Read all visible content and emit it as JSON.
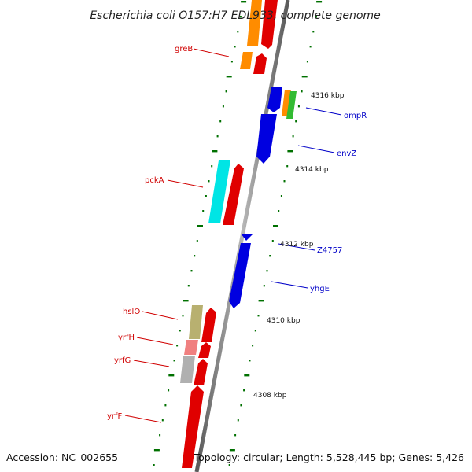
{
  "title": "Escherichia coli O157:H7 EDL933, complete genome",
  "footer": {
    "accession": "Accession: NC_002655",
    "topology": "Topology: circular; Length: 5,528,445 bp; Genes: 5,426"
  },
  "kbp_labels": [
    "4316 kbp",
    "4314 kbp",
    "4312 kbp",
    "4310 kbp",
    "4308 kbp"
  ],
  "colors": {
    "red": "#e00000",
    "blue": "#0000e0",
    "orange": "#ff8c00",
    "green": "#33bb33",
    "cyan": "#00e5e5",
    "olive": "#b8b070",
    "pink": "#f08080",
    "gray": "#b0b0b0",
    "backbone": "#8a8a8a",
    "ticks": "#007000",
    "label_red": "#d00000",
    "label_blue": "#0000c8"
  },
  "gene_labels_left": [
    "greB",
    "pckA",
    "hslO",
    "yrfH",
    "yrfG",
    "yrfF"
  ],
  "gene_labels_right": [
    "ompR",
    "envZ",
    "Z4757",
    "yhgE"
  ]
}
